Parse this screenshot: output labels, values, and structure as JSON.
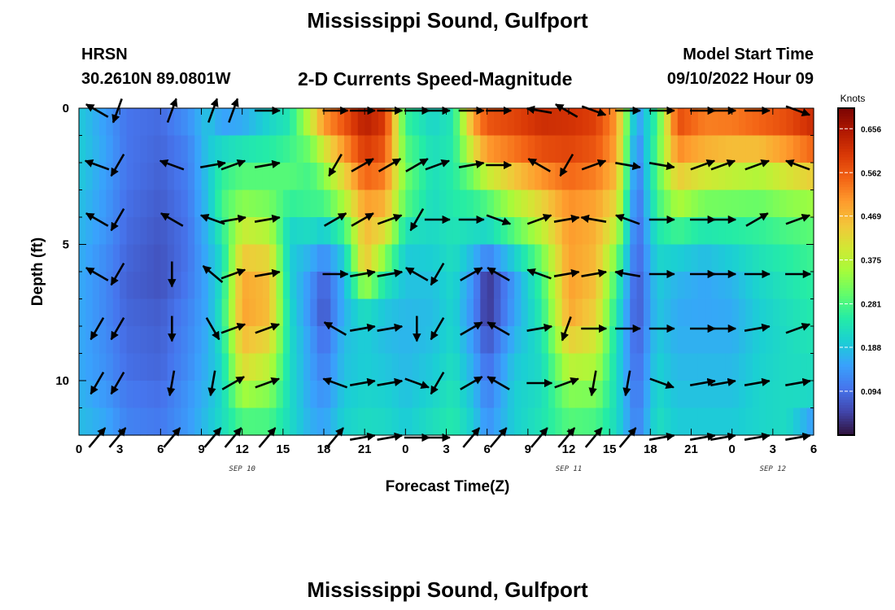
{
  "header": {
    "title": "Mississippi Sound, Gulfport",
    "station": "HRSN",
    "coords": "30.2610N  89.0801W",
    "subtitle": "2-D Currents Speed-Magnitude",
    "model_start_label": "Model Start Time",
    "model_start_value": "09/10/2022 Hour 09"
  },
  "footer": {
    "title_repeat": "Mississippi Sound, Gulfport"
  },
  "colors": {
    "scale": [
      "#30123b",
      "#4145ab",
      "#4675ed",
      "#39a2fc",
      "#1bcfd4",
      "#24eca6",
      "#61fc6c",
      "#a4fc3b",
      "#d1e834",
      "#f3c63a",
      "#fe9b2d",
      "#f36315",
      "#d93806",
      "#b11901",
      "#7a0402"
    ]
  },
  "chart_data": {
    "type": "heatmap",
    "title": "2-D Currents Speed-Magnitude",
    "xlabel": "Forecast Time(Z)",
    "ylabel": "Depth (ft)",
    "x_range_hours": [
      0,
      54
    ],
    "y_range_ft": [
      0,
      12
    ],
    "x_tick_labels": [
      "0",
      "3",
      "6",
      "9",
      "12",
      "15",
      "18",
      "21",
      "0",
      "3",
      "6",
      "9",
      "12",
      "15",
      "18",
      "21",
      "0",
      "3",
      "6"
    ],
    "y_tick_labels": [
      "0",
      "5",
      "10"
    ],
    "y_tick_values": [
      0,
      5,
      10
    ],
    "date_labels": [
      {
        "label": "SEP 10",
        "hour": 12
      },
      {
        "label": "SEP 11",
        "hour": 36
      },
      {
        "label": "SEP 12",
        "hour": 51
      }
    ],
    "colorbar": {
      "title": "Knots",
      "range": [
        0.0,
        0.7
      ],
      "ticks": [
        "0.094",
        "0.188",
        "0.281",
        "0.375",
        "0.469",
        "0.562",
        "0.656"
      ],
      "tick_values": [
        0.094,
        0.188,
        0.281,
        0.375,
        0.469,
        0.562,
        0.656
      ]
    },
    "profile_depths_ft": [
      0,
      1,
      2,
      3,
      4,
      5,
      6,
      7,
      8,
      9,
      10,
      11,
      12
    ],
    "speed_keyframes": [
      {
        "hour": 0,
        "speeds": [
          0.19,
          0.2,
          0.2,
          0.19,
          0.18,
          0.17,
          0.16,
          0.16,
          0.16,
          0.16,
          0.16,
          0.18,
          0.18
        ]
      },
      {
        "hour": 2,
        "speeds": [
          0.14,
          0.15,
          0.15,
          0.14,
          0.14,
          0.13,
          0.12,
          0.12,
          0.12,
          0.13,
          0.13,
          0.15,
          0.16
        ]
      },
      {
        "hour": 3.5,
        "speeds": [
          0.1,
          0.1,
          0.1,
          0.1,
          0.09,
          0.09,
          0.08,
          0.08,
          0.09,
          0.09,
          0.1,
          0.11,
          0.12
        ]
      },
      {
        "hour": 6,
        "speeds": [
          0.09,
          0.09,
          0.08,
          0.08,
          0.07,
          0.07,
          0.06,
          0.07,
          0.08,
          0.08,
          0.09,
          0.1,
          0.11
        ]
      },
      {
        "hour": 8,
        "speeds": [
          0.14,
          0.12,
          0.11,
          0.11,
          0.1,
          0.1,
          0.1,
          0.11,
          0.12,
          0.12,
          0.13,
          0.14,
          0.14
        ]
      },
      {
        "hour": 9.5,
        "speeds": [
          0.19,
          0.19,
          0.19,
          0.19,
          0.18,
          0.17,
          0.16,
          0.16,
          0.16,
          0.17,
          0.17,
          0.18,
          0.19
        ]
      },
      {
        "hour": 10.5,
        "speeds": [
          0.12,
          0.18,
          0.25,
          0.27,
          0.28,
          0.22,
          0.22,
          0.24,
          0.24,
          0.22,
          0.21,
          0.22,
          0.22
        ]
      },
      {
        "hour": 12,
        "speeds": [
          0.13,
          0.19,
          0.28,
          0.3,
          0.36,
          0.42,
          0.47,
          0.5,
          0.48,
          0.44,
          0.4,
          0.3,
          0.27
        ]
      },
      {
        "hour": 14,
        "speeds": [
          0.2,
          0.22,
          0.28,
          0.3,
          0.33,
          0.4,
          0.45,
          0.47,
          0.45,
          0.4,
          0.35,
          0.3,
          0.26
        ]
      },
      {
        "hour": 15.5,
        "speeds": [
          0.22,
          0.26,
          0.28,
          0.3,
          0.22,
          0.2,
          0.2,
          0.21,
          0.22,
          0.22,
          0.22,
          0.22,
          0.22
        ]
      },
      {
        "hour": 17,
        "speeds": [
          0.42,
          0.35,
          0.27,
          0.28,
          0.26,
          0.18,
          0.15,
          0.12,
          0.14,
          0.15,
          0.15,
          0.16,
          0.17
        ]
      },
      {
        "hour": 18,
        "speeds": [
          0.55,
          0.45,
          0.35,
          0.3,
          0.25,
          0.15,
          0.1,
          0.05,
          0.08,
          0.1,
          0.12,
          0.14,
          0.16
        ]
      },
      {
        "hour": 19.5,
        "speeds": [
          0.58,
          0.55,
          0.46,
          0.4,
          0.32,
          0.22,
          0.18,
          0.16,
          0.18,
          0.18,
          0.19,
          0.2,
          0.21
        ]
      },
      {
        "hour": 21,
        "speeds": [
          0.66,
          0.62,
          0.58,
          0.52,
          0.47,
          0.46,
          0.45,
          0.25,
          0.2,
          0.2,
          0.2,
          0.22,
          0.22
        ]
      },
      {
        "hour": 22.5,
        "speeds": [
          0.62,
          0.58,
          0.55,
          0.5,
          0.45,
          0.38,
          0.27,
          0.2,
          0.18,
          0.18,
          0.2,
          0.21,
          0.22
        ]
      },
      {
        "hour": 24,
        "speeds": [
          0.25,
          0.28,
          0.3,
          0.32,
          0.26,
          0.2,
          0.19,
          0.18,
          0.17,
          0.17,
          0.18,
          0.19,
          0.2
        ]
      },
      {
        "hour": 26,
        "speeds": [
          0.2,
          0.22,
          0.23,
          0.22,
          0.22,
          0.21,
          0.19,
          0.18,
          0.18,
          0.19,
          0.2,
          0.22,
          0.23
        ]
      },
      {
        "hour": 27.5,
        "speeds": [
          0.24,
          0.24,
          0.25,
          0.25,
          0.24,
          0.23,
          0.22,
          0.21,
          0.21,
          0.22,
          0.23,
          0.24,
          0.25
        ]
      },
      {
        "hour": 29,
        "speeds": [
          0.5,
          0.48,
          0.35,
          0.28,
          0.24,
          0.2,
          0.14,
          0.12,
          0.13,
          0.15,
          0.17,
          0.19,
          0.2
        ]
      },
      {
        "hour": 30,
        "speeds": [
          0.58,
          0.55,
          0.45,
          0.32,
          0.25,
          0.18,
          0.05,
          0.01,
          0.05,
          0.08,
          0.1,
          0.12,
          0.14
        ]
      },
      {
        "hour": 32,
        "speeds": [
          0.6,
          0.57,
          0.5,
          0.4,
          0.33,
          0.25,
          0.15,
          0.14,
          0.16,
          0.18,
          0.2,
          0.2,
          0.2
        ]
      },
      {
        "hour": 34,
        "speeds": [
          0.63,
          0.6,
          0.55,
          0.46,
          0.4,
          0.35,
          0.27,
          0.26,
          0.24,
          0.22,
          0.22,
          0.23,
          0.24
        ]
      },
      {
        "hour": 36,
        "speeds": [
          0.62,
          0.6,
          0.57,
          0.52,
          0.5,
          0.5,
          0.49,
          0.5,
          0.47,
          0.4,
          0.35,
          0.3,
          0.28
        ]
      },
      {
        "hour": 38,
        "speeds": [
          0.6,
          0.58,
          0.55,
          0.5,
          0.48,
          0.47,
          0.46,
          0.45,
          0.42,
          0.38,
          0.34,
          0.3,
          0.26
        ]
      },
      {
        "hour": 39.5,
        "speeds": [
          0.5,
          0.5,
          0.48,
          0.45,
          0.4,
          0.35,
          0.28,
          0.25,
          0.23,
          0.22,
          0.22,
          0.22,
          0.22
        ]
      },
      {
        "hour": 41,
        "speeds": [
          0.15,
          0.12,
          0.1,
          0.09,
          0.08,
          0.08,
          0.07,
          0.06,
          0.07,
          0.08,
          0.09,
          0.1,
          0.11
        ]
      },
      {
        "hour": 42.5,
        "speeds": [
          0.26,
          0.28,
          0.3,
          0.28,
          0.26,
          0.22,
          0.2,
          0.19,
          0.19,
          0.2,
          0.21,
          0.22,
          0.23
        ]
      },
      {
        "hour": 44,
        "speeds": [
          0.6,
          0.55,
          0.48,
          0.4,
          0.32,
          0.22,
          0.18,
          0.16,
          0.16,
          0.17,
          0.18,
          0.19,
          0.2
        ]
      },
      {
        "hour": 46,
        "speeds": [
          0.55,
          0.5,
          0.45,
          0.35,
          0.28,
          0.2,
          0.16,
          0.15,
          0.16,
          0.17,
          0.18,
          0.19,
          0.2
        ]
      },
      {
        "hour": 48,
        "speeds": [
          0.56,
          0.5,
          0.42,
          0.34,
          0.28,
          0.22,
          0.18,
          0.16,
          0.16,
          0.17,
          0.18,
          0.19,
          0.2
        ]
      },
      {
        "hour": 50,
        "speeds": [
          0.58,
          0.52,
          0.4,
          0.33,
          0.28,
          0.24,
          0.22,
          0.2,
          0.2,
          0.2,
          0.21,
          0.21,
          0.21
        ]
      },
      {
        "hour": 52,
        "speeds": [
          0.6,
          0.55,
          0.45,
          0.36,
          0.3,
          0.26,
          0.24,
          0.23,
          0.22,
          0.22,
          0.22,
          0.22,
          0.22
        ]
      },
      {
        "hour": 54,
        "speeds": [
          0.64,
          0.6,
          0.5,
          0.38,
          0.31,
          0.28,
          0.26,
          0.25,
          0.24,
          0.23,
          0.22,
          0.21,
          0.08
        ]
      }
    ],
    "vector_hours": [
      0.5,
      2,
      6,
      9,
      10.5,
      13,
      18,
      20,
      22,
      24,
      25.5,
      28,
      30,
      33,
      35,
      37,
      39.5,
      42,
      45,
      46.5,
      49,
      52
    ],
    "vector_depths_ft": [
      0,
      2,
      4,
      6,
      8,
      10,
      12
    ],
    "vector_directions_deg": [
      [
        300,
        200,
        20,
        20,
        20,
        90,
        90,
        90,
        90,
        90,
        90,
        90,
        90,
        280,
        300,
        110,
        90,
        90,
        90,
        90,
        90,
        110
      ],
      [
        290,
        210,
        290,
        80,
        70,
        80,
        210,
        60,
        60,
        60,
        70,
        80,
        90,
        300,
        210,
        70,
        100,
        100,
        70,
        70,
        70,
        290
      ],
      [
        300,
        210,
        300,
        290,
        80,
        80,
        60,
        60,
        70,
        210,
        90,
        90,
        110,
        70,
        80,
        280,
        290,
        90,
        90,
        90,
        60,
        70
      ],
      [
        300,
        210,
        180,
        310,
        70,
        80,
        90,
        80,
        80,
        300,
        210,
        60,
        300,
        290,
        80,
        80,
        280,
        90,
        90,
        90,
        90,
        90
      ],
      [
        210,
        210,
        180,
        150,
        70,
        70,
        300,
        80,
        80,
        180,
        210,
        60,
        300,
        80,
        200,
        90,
        90,
        90,
        90,
        90,
        80,
        70
      ],
      [
        210,
        210,
        190,
        190,
        60,
        70,
        290,
        80,
        80,
        110,
        210,
        60,
        300,
        90,
        70,
        190,
        190,
        110,
        80,
        80,
        80,
        80
      ],
      [
        40,
        40,
        40,
        40,
        40,
        40,
        40,
        80,
        80,
        90,
        90,
        40,
        40,
        40,
        40,
        40,
        40,
        80,
        80,
        80,
        80,
        80
      ]
    ]
  }
}
